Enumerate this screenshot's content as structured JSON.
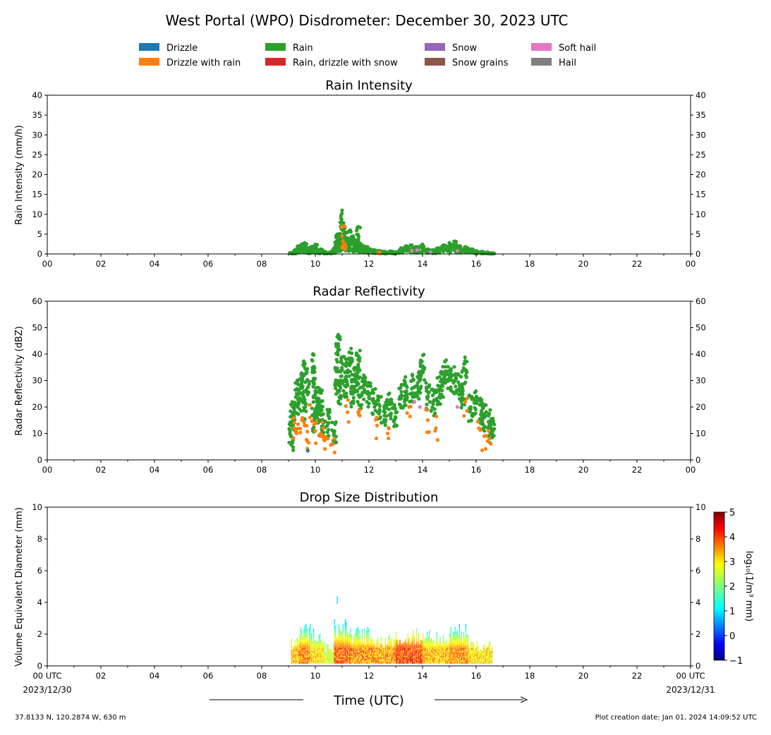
{
  "figure": {
    "title": "West Portal (WPO) Disdrometer: December 30, 2023 UTC",
    "location": "37.8133 N, 120.2874 W, 630 m",
    "creation": "Plot creation date: Jan 01, 2024 14:09:52 UTC",
    "xlabel": "Time (UTC)",
    "date_start": "2023/12/30",
    "date_end": "2023/12/31"
  },
  "legend": [
    {
      "label": "Drizzle",
      "color": "#1f77b4"
    },
    {
      "label": "Drizzle with rain",
      "color": "#ff7f0e"
    },
    {
      "label": "Rain",
      "color": "#2ca02c"
    },
    {
      "label": "Rain, drizzle with snow",
      "color": "#d62728"
    },
    {
      "label": "Snow",
      "color": "#9467bd"
    },
    {
      "label": "Snow grains",
      "color": "#8c564b"
    },
    {
      "label": "Soft hail",
      "color": "#e377c2"
    },
    {
      "label": "Hail",
      "color": "#7f7f7f"
    }
  ],
  "chart_data": [
    {
      "type": "scatter",
      "title": "Rain Intensity",
      "ylabel": "Rain Intensity (mm/h)",
      "xlim": [
        0,
        24
      ],
      "ylim": [
        0,
        40
      ],
      "yticks": [
        0,
        5,
        10,
        15,
        20,
        25,
        30,
        35,
        40
      ],
      "xticks": [
        "00",
        "02",
        "04",
        "06",
        "08",
        "10",
        "12",
        "14",
        "16",
        "18",
        "20",
        "22",
        "00"
      ],
      "series": [
        {
          "name": "Rain",
          "color": "#2ca02c",
          "x": [
            9.1,
            9.2,
            9.3,
            9.4,
            9.5,
            9.6,
            9.7,
            9.8,
            9.9,
            10.0,
            10.1,
            10.2,
            10.3,
            10.4,
            10.6,
            10.7,
            10.8,
            10.85,
            10.9,
            10.95,
            11.0,
            11.05,
            11.1,
            11.2,
            11.3,
            11.4,
            11.5,
            11.6,
            11.7,
            11.8,
            11.9,
            12.0,
            12.2,
            12.4,
            12.6,
            12.8,
            13.0,
            13.2,
            13.4,
            13.6,
            13.8,
            14.0,
            14.2,
            14.4,
            14.6,
            14.8,
            15.0,
            15.2,
            15.4,
            15.6,
            15.8,
            16.0,
            16.2,
            16.4,
            16.6
          ],
          "y": [
            0.3,
            0.6,
            1.2,
            2.0,
            2.5,
            2.8,
            1.5,
            0.8,
            1.9,
            2.4,
            0.9,
            1.2,
            0.6,
            0.3,
            0.5,
            1.5,
            3.2,
            5.0,
            4.2,
            6.8,
            11.0,
            7.8,
            5.5,
            4.0,
            6.0,
            4.5,
            3.5,
            6.8,
            2.5,
            2.0,
            1.8,
            1.2,
            1.0,
            0.8,
            0.6,
            0.7,
            0.5,
            1.5,
            2.0,
            2.2,
            1.8,
            2.4,
            1.2,
            1.0,
            1.5,
            2.2,
            2.8,
            3.2,
            2.0,
            1.8,
            1.2,
            0.8,
            0.6,
            0.4,
            0.2
          ]
        },
        {
          "name": "Drizzle with rain",
          "color": "#ff7f0e",
          "x": [
            11.0,
            11.05,
            11.1,
            12.4
          ],
          "y": [
            4.5,
            7.0,
            2.5,
            0.4
          ]
        },
        {
          "name": "Soft hail",
          "color": "#e377c2",
          "x": [
            13.6,
            13.8,
            14.3,
            15.3
          ],
          "y": [
            0.8,
            1.0,
            0.5,
            0.8
          ]
        }
      ]
    },
    {
      "type": "scatter",
      "title": "Radar Reflectivity",
      "ylabel": "Radar Reflectivity (dBZ)",
      "xlim": [
        0,
        24
      ],
      "ylim": [
        0,
        60
      ],
      "yticks": [
        0,
        10,
        20,
        30,
        40,
        50,
        60
      ],
      "xticks": [
        "00",
        "02",
        "04",
        "06",
        "08",
        "10",
        "12",
        "14",
        "16",
        "18",
        "20",
        "22",
        "00"
      ],
      "series": [
        {
          "name": "Rain",
          "color": "#2ca02c",
          "x": [
            9.1,
            9.15,
            9.2,
            9.3,
            9.4,
            9.5,
            9.55,
            9.6,
            9.7,
            9.9,
            9.95,
            10.0,
            10.05,
            10.1,
            10.2,
            10.3,
            10.5,
            10.7,
            10.8,
            10.85,
            10.9,
            11.0,
            11.1,
            11.2,
            11.3,
            11.4,
            11.5,
            11.6,
            11.65,
            11.8,
            12.0,
            12.2,
            12.4,
            12.6,
            12.8,
            13.0,
            13.2,
            13.4,
            13.6,
            13.8,
            13.9,
            14.0,
            14.2,
            14.4,
            14.6,
            14.7,
            14.8,
            15.0,
            15.2,
            15.4,
            15.5,
            15.6,
            15.8,
            16.0,
            16.2,
            16.3,
            16.5,
            16.6
          ],
          "y": [
            9,
            17,
            15,
            25,
            22,
            28,
            32,
            20,
            30,
            35,
            15,
            26,
            22,
            18,
            22,
            14,
            14,
            10,
            30,
            42,
            26,
            34,
            28,
            33,
            37,
            25,
            30,
            36,
            24,
            28,
            24,
            22,
            19,
            18,
            21,
            16,
            24,
            26,
            27,
            28,
            30,
            35,
            24,
            22,
            26,
            28,
            33,
            31,
            30,
            28,
            25,
            34,
            20,
            22,
            18,
            16,
            14,
            11
          ]
        },
        {
          "name": "Drizzle with rain",
          "color": "#ff7f0e",
          "x": [
            9.2,
            9.3,
            9.5,
            9.6,
            9.7,
            9.8,
            10.0,
            10.2,
            10.3,
            10.4,
            10.65,
            11.2,
            11.6,
            12.3,
            12.7,
            13.5,
            14.2,
            14.5,
            15.6,
            16.1,
            16.3,
            16.5
          ],
          "y": [
            12,
            10,
            15,
            13,
            7,
            16,
            11,
            9,
            12,
            8,
            6,
            18,
            18,
            13,
            10,
            20,
            15,
            12,
            22,
            12,
            9,
            8
          ]
        },
        {
          "name": "Drizzle",
          "color": "#1f77b4",
          "x": [
            9.72
          ],
          "y": [
            3.5
          ]
        },
        {
          "name": "Soft hail",
          "color": "#e377c2",
          "x": [
            13.7,
            13.9,
            15.3
          ],
          "y": [
            22,
            20,
            20
          ]
        }
      ]
    },
    {
      "type": "heatmap",
      "title": "Drop Size Distribution",
      "ylabel": "Volume Equivalent Diameter (mm)",
      "xlim": [
        0,
        24
      ],
      "ylim": [
        0,
        10
      ],
      "yticks": [
        0,
        2,
        4,
        6,
        8,
        10
      ],
      "xticks": [
        "00 UTC",
        "02",
        "04",
        "06",
        "08",
        "10",
        "12",
        "14",
        "16",
        "18",
        "20",
        "22",
        "00 UTC"
      ],
      "colorbar": {
        "label": "log₁₀(1/m³ mm)",
        "min": -1,
        "max": 5,
        "ticks": [
          -1,
          0,
          1,
          2,
          3,
          4,
          5
        ],
        "colormap": "jet"
      },
      "segments": [
        {
          "start": 9.1,
          "end": 9.4,
          "top": 1.7,
          "peak": 3.2
        },
        {
          "start": 9.4,
          "end": 9.8,
          "top": 2.8,
          "peak": 3.6
        },
        {
          "start": 9.8,
          "end": 10.3,
          "top": 2.4,
          "peak": 3.0
        },
        {
          "start": 10.3,
          "end": 10.7,
          "top": 1.5,
          "peak": 2.5
        },
        {
          "start": 10.7,
          "end": 11.3,
          "top": 3.0,
          "peak": 3.8
        },
        {
          "start": 11.3,
          "end": 12.0,
          "top": 2.4,
          "peak": 3.5
        },
        {
          "start": 12.0,
          "end": 13.0,
          "top": 1.9,
          "peak": 3.4
        },
        {
          "start": 13.0,
          "end": 14.0,
          "top": 2.3,
          "peak": 4.0
        },
        {
          "start": 14.0,
          "end": 15.0,
          "top": 2.2,
          "peak": 3.2
        },
        {
          "start": 15.0,
          "end": 15.7,
          "top": 2.7,
          "peak": 3.5
        },
        {
          "start": 15.7,
          "end": 16.6,
          "top": 1.5,
          "peak": 3.0
        }
      ],
      "spikes": [
        {
          "x": 10.8,
          "y0": 3.9,
          "y1": 4.4
        }
      ]
    }
  ]
}
